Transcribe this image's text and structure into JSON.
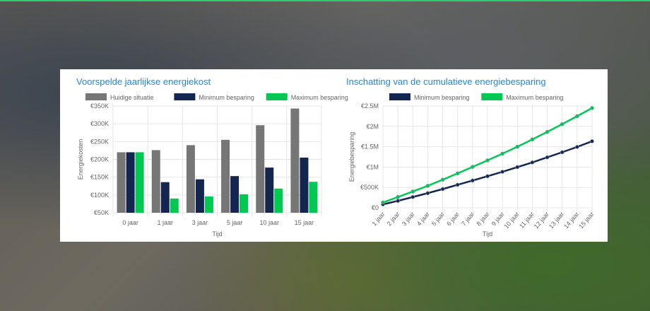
{
  "colors": {
    "current": "#767676",
    "min": "#14254f",
    "max": "#00c853",
    "title": "#1e88e5"
  },
  "chart_data": [
    {
      "type": "bar",
      "title": "Voorspelde jaarlijkse energiekost",
      "xlabel": "Tijd",
      "ylabel": "Energiekosten",
      "categories": [
        "0 jaar",
        "1 jaar",
        "3 jaar",
        "5 jaar",
        "10 jaar",
        "15 jaar"
      ],
      "ylim": [
        50000,
        350000
      ],
      "yticks": [
        50000,
        100000,
        150000,
        200000,
        250000,
        300000,
        350000
      ],
      "ytick_labels": [
        "€50K",
        "€100K",
        "€150K",
        "€200K",
        "€250K",
        "€300K",
        "€350K"
      ],
      "legend": "top",
      "grid": true,
      "series": [
        {
          "name": "Huidige situatie",
          "values": [
            220000,
            226000,
            240000,
            255000,
            296000,
            343000
          ]
        },
        {
          "name": "Minimum besparing",
          "values": [
            220000,
            136000,
            144000,
            153000,
            177000,
            205000
          ]
        },
        {
          "name": "Maximum besparing",
          "values": [
            220000,
            90000,
            96000,
            102000,
            118000,
            137000
          ]
        }
      ]
    },
    {
      "type": "line",
      "title": "Inschatting van de cumulatieve energiebesparing",
      "xlabel": "Tijd",
      "ylabel": "Energiebesparing",
      "categories": [
        "1 jaar",
        "2 jaar",
        "3 jaar",
        "4 jaar",
        "5 jaar",
        "6 jaar",
        "7 jaar",
        "8 jaar",
        "9 jaar",
        "10 jaar",
        "11 jaar",
        "12 jaar",
        "13 jaar",
        "14 jaar",
        "15 jaar"
      ],
      "ylim": [
        0,
        2500000
      ],
      "yticks": [
        0,
        500000,
        1000000,
        1500000,
        2000000,
        2500000
      ],
      "ytick_labels": [
        "€0",
        "€500K",
        "€1M",
        "€1.5M",
        "€2M",
        "€2.5M"
      ],
      "legend": "top",
      "grid": true,
      "series": [
        {
          "name": "Minimum besparing",
          "values": [
            85000,
            170000,
            265000,
            360000,
            460000,
            565000,
            670000,
            775000,
            885000,
            1000000,
            1115000,
            1240000,
            1365000,
            1495000,
            1635000
          ]
        },
        {
          "name": "Maximum besparing",
          "values": [
            130000,
            265000,
            400000,
            540000,
            690000,
            845000,
            1005000,
            1165000,
            1330000,
            1500000,
            1680000,
            1865000,
            2055000,
            2250000,
            2450000
          ]
        }
      ]
    }
  ]
}
